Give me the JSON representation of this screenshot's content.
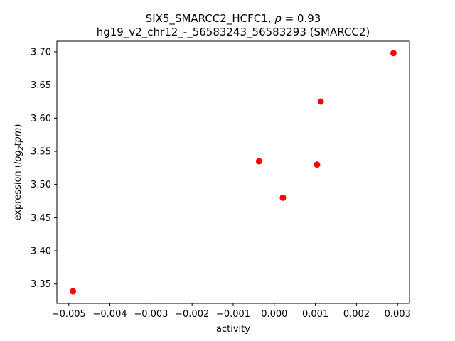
{
  "chart_data": {
    "type": "scatter",
    "title_line1_prefix": "SIX5_SMARCC2_HCFC1, ",
    "title_line1_rho": "ρ",
    "title_line1_suffix": " = 0.93",
    "title_line2": "hg19_v2_chr12_-_56583243_56583293 (SMARCC2)",
    "xlabel": "activity",
    "ylabel_prefix": "expression (",
    "ylabel_log": "log",
    "ylabel_sub": "2",
    "ylabel_tpm": "tpm",
    "ylabel_suffix": ")",
    "xlim": [
      -0.00529,
      0.00329
    ],
    "ylim": [
      3.3208,
      3.716
    ],
    "x_ticks": [
      {
        "value": -0.005,
        "label": "−0.005"
      },
      {
        "value": -0.004,
        "label": "−0.004"
      },
      {
        "value": -0.003,
        "label": "−0.003"
      },
      {
        "value": -0.002,
        "label": "−0.002"
      },
      {
        "value": -0.001,
        "label": "−0.001"
      },
      {
        "value": 0.0,
        "label": "0.000"
      },
      {
        "value": 0.001,
        "label": "0.001"
      },
      {
        "value": 0.002,
        "label": "0.002"
      },
      {
        "value": 0.003,
        "label": "0.003"
      }
    ],
    "y_ticks": [
      {
        "value": 3.35,
        "label": "3.35"
      },
      {
        "value": 3.4,
        "label": "3.40"
      },
      {
        "value": 3.45,
        "label": "3.45"
      },
      {
        "value": 3.5,
        "label": "3.50"
      },
      {
        "value": 3.55,
        "label": "3.55"
      },
      {
        "value": 3.6,
        "label": "3.60"
      },
      {
        "value": 3.65,
        "label": "3.65"
      },
      {
        "value": 3.7,
        "label": "3.70"
      }
    ],
    "points": [
      {
        "x": -0.0049,
        "y": 3.339
      },
      {
        "x": -0.00037,
        "y": 3.535
      },
      {
        "x": 0.00021,
        "y": 3.48
      },
      {
        "x": 0.00104,
        "y": 3.53
      },
      {
        "x": 0.00113,
        "y": 3.625
      },
      {
        "x": 0.0029,
        "y": 3.698
      }
    ],
    "marker_color": "#ff0000",
    "grid": false,
    "legend": "none"
  }
}
